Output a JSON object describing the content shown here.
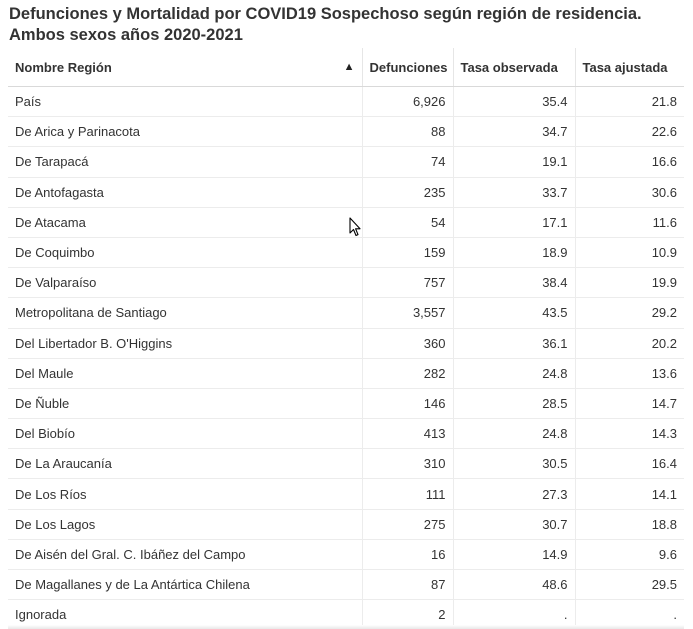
{
  "title": "Defunciones y Mortalidad por COVID19 Sospechoso según región de residencia. Ambos sexos años 2020-2021",
  "table": {
    "headers": [
      "Nombre Región",
      "Defunciones",
      "Tasa observada",
      "Tasa ajustada"
    ],
    "sort_indicator": "▲",
    "rows": [
      [
        "País",
        "6,926",
        "35.4",
        "21.8"
      ],
      [
        "De Arica y Parinacota",
        "88",
        "34.7",
        "22.6"
      ],
      [
        "De Tarapacá",
        "74",
        "19.1",
        "16.6"
      ],
      [
        "De Antofagasta",
        "235",
        "33.7",
        "30.6"
      ],
      [
        "De Atacama",
        "54",
        "17.1",
        "11.6"
      ],
      [
        "De Coquimbo",
        "159",
        "18.9",
        "10.9"
      ],
      [
        "De Valparaíso",
        "757",
        "38.4",
        "19.9"
      ],
      [
        "Metropolitana de Santiago",
        "3,557",
        "43.5",
        "29.2"
      ],
      [
        "Del Libertador B. O'Higgins",
        "360",
        "36.1",
        "20.2"
      ],
      [
        "Del Maule",
        "282",
        "24.8",
        "13.6"
      ],
      [
        "De Ñuble",
        "146",
        "28.5",
        "14.7"
      ],
      [
        "Del Biobío",
        "413",
        "24.8",
        "14.3"
      ],
      [
        "De La Araucanía",
        "310",
        "30.5",
        "16.4"
      ],
      [
        "De Los Ríos",
        "111",
        "27.3",
        "14.1"
      ],
      [
        "De Los Lagos",
        "275",
        "30.7",
        "18.8"
      ],
      [
        "De Aisén del Gral. C. Ibáñez del Campo",
        "16",
        "14.9",
        "9.6"
      ],
      [
        "De Magallanes y de La Antártica Chilena",
        "87",
        "48.6",
        "29.5"
      ],
      [
        "Ignorada",
        "2",
        ".",
        "."
      ]
    ]
  }
}
